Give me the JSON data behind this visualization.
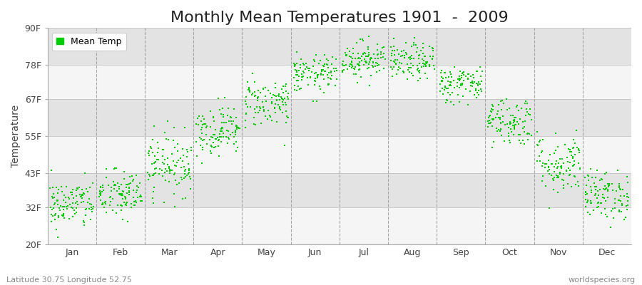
{
  "title": "Monthly Mean Temperatures 1901  -  2009",
  "ylabel": "Temperature",
  "subtitle_left": "Latitude 30.75 Longitude 52.75",
  "subtitle_right": "worldspecies.org",
  "legend_label": "Mean Temp",
  "dot_color": "#00cc00",
  "dot_size": 2.5,
  "background_color": "#ffffff",
  "plot_bg_color": "#ebebeb",
  "band_colors": [
    "#f5f5f5",
    "#e3e3e3"
  ],
  "ylim": [
    20,
    90
  ],
  "yticks": [
    20,
    32,
    43,
    55,
    67,
    78,
    90
  ],
  "ytick_labels": [
    "20F",
    "32F",
    "43F",
    "55F",
    "67F",
    "78F",
    "90F"
  ],
  "month_labels": [
    "Jan",
    "Feb",
    "Mar",
    "Apr",
    "May",
    "Jun",
    "Jul",
    "Aug",
    "Sep",
    "Oct",
    "Nov",
    "Dec"
  ],
  "monthly_mean_F": [
    33,
    36,
    46,
    57,
    66,
    75,
    80,
    79,
    72,
    60,
    46,
    36
  ],
  "monthly_std_F": [
    4,
    4,
    5,
    4,
    4,
    3,
    3,
    3,
    3,
    4,
    5,
    4
  ],
  "n_years": 109,
  "title_fontsize": 16,
  "axis_fontsize": 10,
  "tick_fontsize": 9,
  "legend_fontsize": 9,
  "figwidth": 9.0,
  "figheight": 4.0,
  "dpi": 100
}
